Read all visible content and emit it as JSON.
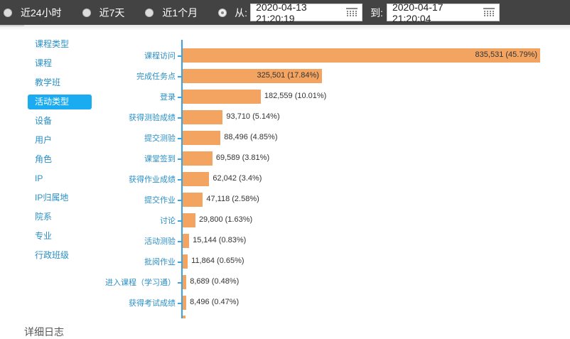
{
  "filter_bar": {
    "options": [
      {
        "label": "近24小时",
        "checked": false
      },
      {
        "label": "近7天",
        "checked": false
      },
      {
        "label": "近1个月",
        "checked": false
      },
      {
        "label": "从:",
        "checked": true
      }
    ],
    "from_value": "2020-04-13 21:20:19",
    "to_label": "到:",
    "to_value": "2020-04-17 21:20:04",
    "calendar_icon": "calendar-icon"
  },
  "sidebar": {
    "items": [
      {
        "label": "课程类型",
        "active": false
      },
      {
        "label": "课程",
        "active": false
      },
      {
        "label": "教学班",
        "active": false
      },
      {
        "label": "活动类型",
        "active": true
      },
      {
        "label": "设备",
        "active": false
      },
      {
        "label": "用户",
        "active": false
      },
      {
        "label": "角色",
        "active": false
      },
      {
        "label": "IP",
        "active": false
      },
      {
        "label": "IP归属地",
        "active": false
      },
      {
        "label": "院系",
        "active": false
      },
      {
        "label": "专业",
        "active": false
      },
      {
        "label": "行政班级",
        "active": false
      }
    ]
  },
  "chart_data": {
    "type": "bar",
    "orientation": "horizontal",
    "title": "",
    "categories": [
      "课程访问",
      "完成任务点",
      "登录",
      "获得测验成绩",
      "提交测验",
      "课堂签到",
      "获得作业成绩",
      "提交作业",
      "讨论",
      "活动测验",
      "批阅作业",
      "进入课程（学习通）",
      "获得考试成绩"
    ],
    "values": [
      835531,
      325501,
      182559,
      93710,
      88496,
      69589,
      62042,
      47118,
      29800,
      15144,
      11864,
      8689,
      8496
    ],
    "labels": [
      "835,531 (45.79%)",
      "325,501 (17.84%)",
      "182,559 (10.01%)",
      "93,710 (5.14%)",
      "88,496 (4.85%)",
      "69,589 (3.81%)",
      "62,042 (3.4%)",
      "47,118 (2.58%)",
      "29,800 (1.63%)",
      "15,144 (0.83%)",
      "11,864 (0.65%)",
      "8,689 (0.48%)",
      "8,496 (0.47%)"
    ],
    "percentages": [
      45.79,
      17.84,
      10.01,
      5.14,
      4.85,
      3.81,
      3.4,
      2.58,
      1.63,
      0.83,
      0.65,
      0.48,
      0.47
    ],
    "bar_color": "#f2a460",
    "axis_color": "#3aa3e3",
    "grid": false,
    "legend": "none"
  },
  "bottom": {
    "title": "详细日志"
  }
}
